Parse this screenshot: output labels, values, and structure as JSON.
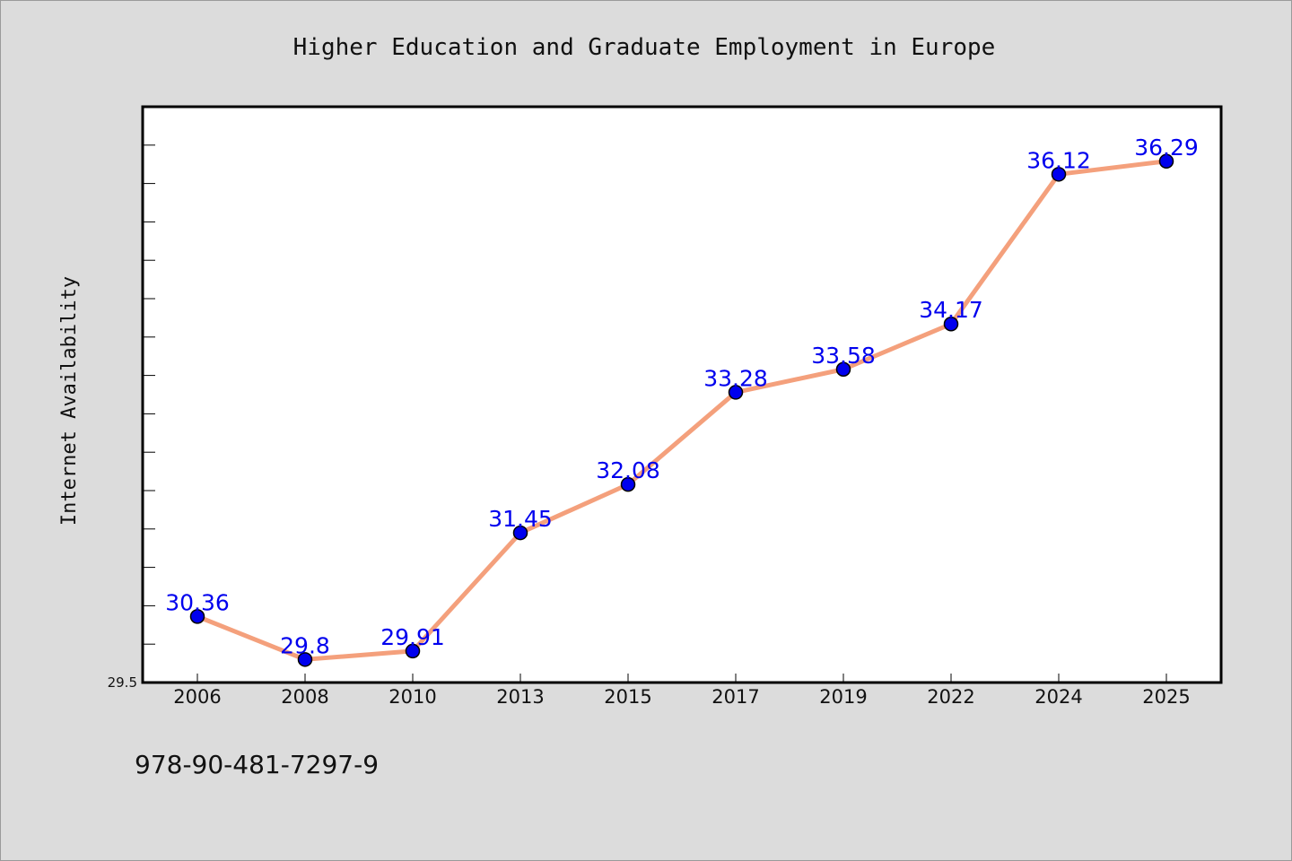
{
  "chart_data": {
    "type": "line",
    "title": "Higher Education and Graduate Employment in Europe",
    "xlabel": "",
    "ylabel": "Internet Availability",
    "categories": [
      "2006",
      "2008",
      "2010",
      "2013",
      "2015",
      "2017",
      "2019",
      "2022",
      "2024",
      "2025"
    ],
    "series": [
      {
        "values": [
          30.36,
          29.8,
          29.91,
          31.45,
          32.08,
          33.28,
          33.58,
          34.17,
          36.12,
          36.29
        ],
        "data_labels": [
          "30.36",
          "29.8",
          "29.91",
          "31.45",
          "32.08",
          "33.28",
          "33.58",
          "34.17",
          "36.12",
          "36.29"
        ]
      }
    ],
    "ylim": [
      29.5,
      37.0
    ],
    "y_tick_labels": [
      "29.5"
    ],
    "grid": false,
    "colors": {
      "line": "#f4a07c",
      "marker": "#0000ee",
      "label": "#0000ee"
    }
  },
  "footer_text": "978-90-481-7297-9"
}
